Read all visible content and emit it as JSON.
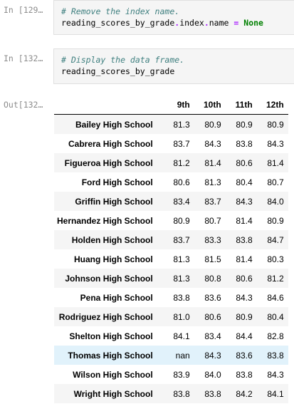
{
  "cells": [
    {
      "prompt": "In [129…",
      "comment": "# Remove the index name.",
      "code": {
        "object": "reading_scores_by_grade",
        "dot1": ".",
        "attr1": "index",
        "dot2": ".",
        "attr2": "name",
        "eq": "=",
        "value": "None"
      }
    },
    {
      "prompt": "In [132…",
      "comment": "# Display the data frame.",
      "code": {
        "object": "reading_scores_by_grade"
      }
    }
  ],
  "output": {
    "prompt": "Out[132…",
    "columns": [
      "9th",
      "10th",
      "11th",
      "12th"
    ],
    "rows": [
      {
        "school": "Bailey High School",
        "values": [
          "81.3",
          "80.9",
          "80.9",
          "80.9"
        ]
      },
      {
        "school": "Cabrera High School",
        "values": [
          "83.7",
          "84.3",
          "83.8",
          "84.3"
        ]
      },
      {
        "school": "Figueroa High School",
        "values": [
          "81.2",
          "81.4",
          "80.6",
          "81.4"
        ]
      },
      {
        "school": "Ford High School",
        "values": [
          "80.6",
          "81.3",
          "80.4",
          "80.7"
        ]
      },
      {
        "school": "Griffin High School",
        "values": [
          "83.4",
          "83.7",
          "84.3",
          "84.0"
        ]
      },
      {
        "school": "Hernandez High School",
        "values": [
          "80.9",
          "80.7",
          "81.4",
          "80.9"
        ]
      },
      {
        "school": "Holden High School",
        "values": [
          "83.7",
          "83.3",
          "83.8",
          "84.7"
        ]
      },
      {
        "school": "Huang High School",
        "values": [
          "81.3",
          "81.5",
          "81.4",
          "80.3"
        ]
      },
      {
        "school": "Johnson High School",
        "values": [
          "81.3",
          "80.8",
          "80.6",
          "81.2"
        ]
      },
      {
        "school": "Pena High School",
        "values": [
          "83.8",
          "83.6",
          "84.3",
          "84.6"
        ]
      },
      {
        "school": "Rodriguez High School",
        "values": [
          "81.0",
          "80.6",
          "80.9",
          "80.4"
        ]
      },
      {
        "school": "Shelton High School",
        "values": [
          "84.1",
          "83.4",
          "84.4",
          "82.8"
        ]
      },
      {
        "school": "Thomas High School",
        "values": [
          "nan",
          "84.3",
          "83.6",
          "83.8"
        ]
      },
      {
        "school": "Wilson High School",
        "values": [
          "83.9",
          "84.0",
          "83.8",
          "84.3"
        ]
      },
      {
        "school": "Wright High School",
        "values": [
          "83.8",
          "83.8",
          "84.2",
          "84.1"
        ]
      }
    ]
  },
  "colors": {
    "comment": "#408080",
    "operator": "#aa22ff",
    "keyword": "#008000",
    "prompt": "#8c8c8c",
    "row_highlight": "#e1f2fb"
  }
}
